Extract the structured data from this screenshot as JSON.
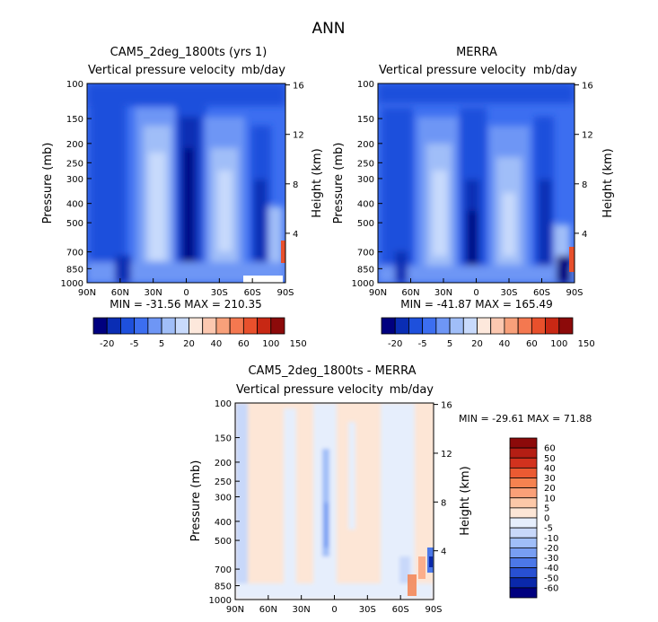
{
  "page": {
    "title": "ANN"
  },
  "panels": [
    {
      "title": "CAM5_2deg_1800ts (yrs 1)",
      "subtitle_left": "Vertical pressure velocity",
      "subtitle_right": "mb/day",
      "stats": "MIN = -31.56   MAX = 210.35"
    },
    {
      "title": "MERRA",
      "subtitle_left": "Vertical pressure velocity",
      "subtitle_right": "mb/day",
      "stats": "MIN = -41.87   MAX = 165.49"
    },
    {
      "title": "CAM5_2deg_1800ts - MERRA",
      "subtitle_left": "Vertical pressure velocity",
      "subtitle_right": "mb/day",
      "stats": "MIN = -29.61   MAX = 71.88"
    }
  ],
  "chart_data": [
    {
      "type": "heatmap",
      "title": "CAM5_2deg_1800ts (yrs 1)",
      "xlabel": "",
      "ylabel": "Pressure (mb)",
      "y2label": "Height (km)",
      "x_ticks": [
        "90N",
        "60N",
        "30N",
        "0",
        "30S",
        "60S",
        "90S"
      ],
      "y_ticks": [
        100,
        150,
        200,
        250,
        300,
        400,
        500,
        700,
        850,
        1000
      ],
      "y2_ticks": [
        4,
        8,
        12,
        16
      ],
      "y_scale": "log",
      "y_reversed": true,
      "min": -31.56,
      "max": 210.35,
      "colorbar": {
        "orientation": "horizontal",
        "levels": [
          "-20",
          "-5",
          "5",
          "20",
          "40",
          "60",
          "100",
          "150"
        ],
        "colors": [
          "#00007f",
          "#0a2db4",
          "#1e50dc",
          "#3c6ef0",
          "#6e96f5",
          "#a0bef8",
          "#c8dafc",
          "#fde8dc",
          "#fcc8b0",
          "#f8a07a",
          "#f47850",
          "#e8502c",
          "#c82814",
          "#8c0a0a"
        ]
      }
    },
    {
      "type": "heatmap",
      "title": "MERRA",
      "xlabel": "",
      "ylabel": "Pressure (mb)",
      "y2label": "Height (km)",
      "x_ticks": [
        "90N",
        "60N",
        "30N",
        "0",
        "30S",
        "60S",
        "90S"
      ],
      "y_ticks": [
        100,
        150,
        200,
        250,
        300,
        400,
        500,
        700,
        850,
        1000
      ],
      "y2_ticks": [
        4,
        8,
        12,
        16
      ],
      "y_scale": "log",
      "y_reversed": true,
      "min": -41.87,
      "max": 165.49,
      "colorbar": {
        "orientation": "horizontal",
        "levels": [
          "-20",
          "-5",
          "5",
          "20",
          "40",
          "60",
          "100",
          "150"
        ],
        "colors": [
          "#00007f",
          "#0a2db4",
          "#1e50dc",
          "#3c6ef0",
          "#6e96f5",
          "#a0bef8",
          "#c8dafc",
          "#fde8dc",
          "#fcc8b0",
          "#f8a07a",
          "#f47850",
          "#e8502c",
          "#c82814",
          "#8c0a0a"
        ]
      }
    },
    {
      "type": "heatmap",
      "title": "CAM5_2deg_1800ts - MERRA",
      "xlabel": "",
      "ylabel": "Pressure (mb)",
      "y2label": "Height (km)",
      "x_ticks": [
        "90N",
        "60N",
        "30N",
        "0",
        "30S",
        "60S",
        "90S"
      ],
      "y_ticks": [
        100,
        150,
        200,
        250,
        300,
        400,
        500,
        700,
        850,
        1000
      ],
      "y2_ticks": [
        4,
        8,
        12,
        16
      ],
      "y_scale": "log",
      "y_reversed": true,
      "min": -29.61,
      "max": 71.88,
      "colorbar": {
        "orientation": "vertical",
        "levels": [
          "60",
          "50",
          "40",
          "30",
          "20",
          "10",
          "5",
          "0",
          "-5",
          "-10",
          "-20",
          "-30",
          "-40",
          "-50",
          "-60"
        ],
        "colors": [
          "#8c0a0a",
          "#b41e14",
          "#d2321e",
          "#eb5a32",
          "#f58250",
          "#faa078",
          "#fcc8a8",
          "#fde6d6",
          "#e6eefc",
          "#c8d8fa",
          "#a0bef8",
          "#789ef2",
          "#4c78e8",
          "#2850d2",
          "#0a28aa",
          "#00007f"
        ]
      }
    }
  ]
}
